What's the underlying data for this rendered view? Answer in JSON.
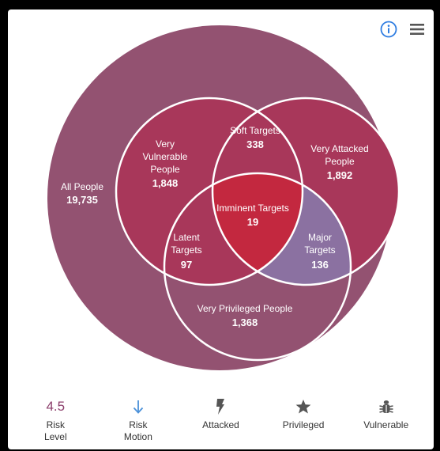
{
  "colors": {
    "all_people": "#935271",
    "overlap_pair": "#a8375a",
    "imminent": "#c3283f",
    "major": "#8b71a1",
    "risk_value": "#8b3e6b",
    "arrow": "#4a90d9",
    "icon_gray": "#555555"
  },
  "venn": {
    "all_people": {
      "label": "All People",
      "value": "19,735"
    },
    "very_vulnerable": {
      "label_lines": [
        "Very",
        "Vulnerable",
        "People"
      ],
      "value": "1,848"
    },
    "soft_targets": {
      "label": "Soft Targets",
      "value": "338"
    },
    "very_attacked": {
      "label_lines": [
        "Very Attacked",
        "People"
      ],
      "value": "1,892"
    },
    "imminent": {
      "label": "Imminent Targets",
      "value": "19"
    },
    "latent": {
      "label_lines": [
        "Latent",
        "Targets"
      ],
      "value": "97"
    },
    "major": {
      "label_lines": [
        "Major",
        "Targets"
      ],
      "value": "136"
    },
    "very_privileged": {
      "label": "Very Privileged People",
      "value": "1,368"
    }
  },
  "legend": {
    "risk_level": {
      "value": "4.5",
      "label": "Risk\nLevel"
    },
    "risk_motion": {
      "label": "Risk\nMotion"
    },
    "attacked": {
      "label": "Attacked"
    },
    "privileged": {
      "label": "Privileged"
    },
    "vulnerable": {
      "label": "Vulnerable"
    }
  }
}
